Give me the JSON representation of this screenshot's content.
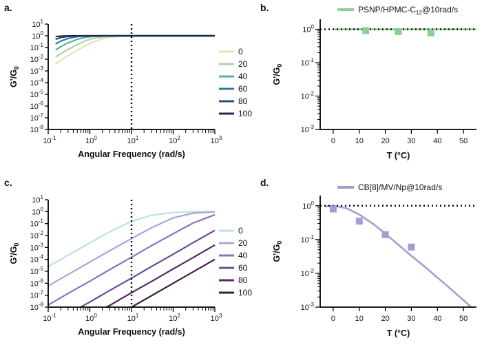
{
  "chart_data": [
    {
      "panel": "a.",
      "type": "line",
      "xlabel": "Angular Frequency (rad/s)",
      "ylabel": "G'/G0",
      "xscale": "log",
      "yscale": "log",
      "xlim": [
        0.1,
        1000
      ],
      "ylim": [
        1e-08,
        10
      ],
      "xticks": [
        0.1,
        1,
        10,
        100,
        1000
      ],
      "yticks": [
        1e-08,
        1e-07,
        1e-06,
        1e-05,
        0.0001,
        0.001,
        0.01,
        0.1,
        1,
        10
      ],
      "vline_x": 10,
      "legend_position": "right",
      "series": [
        {
          "name": "0",
          "color": "#dde8b4",
          "x": [
            0.15,
            0.2,
            0.3,
            0.5,
            0.8,
            1.2,
            2,
            3,
            5,
            10,
            30,
            100,
            1000
          ],
          "y": [
            0.004,
            0.008,
            0.02,
            0.06,
            0.15,
            0.3,
            0.55,
            0.75,
            0.9,
            0.97,
            1,
            1,
            1
          ]
        },
        {
          "name": "20",
          "color": "#a9d6a6",
          "x": [
            0.15,
            0.2,
            0.3,
            0.5,
            0.8,
            1.2,
            2,
            3,
            5,
            10,
            30,
            100,
            1000
          ],
          "y": [
            0.015,
            0.03,
            0.07,
            0.18,
            0.38,
            0.6,
            0.82,
            0.92,
            0.97,
            1,
            1,
            1,
            1
          ]
        },
        {
          "name": "40",
          "color": "#5cae9c",
          "x": [
            0.15,
            0.2,
            0.3,
            0.5,
            0.8,
            1.2,
            2,
            3,
            5,
            10,
            30,
            100,
            1000
          ],
          "y": [
            0.06,
            0.12,
            0.25,
            0.5,
            0.75,
            0.88,
            0.96,
            0.99,
            1,
            1,
            1,
            1,
            1
          ]
        },
        {
          "name": "60",
          "color": "#2f7d92",
          "x": [
            0.15,
            0.2,
            0.3,
            0.5,
            0.8,
            1.2,
            2,
            3,
            5,
            10,
            30,
            100,
            1000
          ],
          "y": [
            0.2,
            0.35,
            0.6,
            0.85,
            0.95,
            0.98,
            1,
            1,
            1,
            1,
            1,
            1,
            1
          ]
        },
        {
          "name": "80",
          "color": "#24507e",
          "x": [
            0.15,
            0.2,
            0.3,
            0.5,
            0.8,
            1.2,
            2,
            3,
            5,
            10,
            30,
            100,
            1000
          ],
          "y": [
            0.5,
            0.7,
            0.88,
            0.97,
            1,
            1,
            1,
            1,
            1,
            1,
            1,
            1,
            1
          ]
        },
        {
          "name": "100",
          "color": "#1f2a4f",
          "x": [
            0.15,
            0.2,
            0.3,
            0.5,
            0.8,
            1.2,
            2,
            3,
            5,
            10,
            30,
            100,
            1000
          ],
          "y": [
            0.85,
            0.93,
            0.98,
            1,
            1,
            1,
            1,
            1,
            1,
            1,
            1,
            1,
            1
          ]
        }
      ]
    },
    {
      "panel": "b.",
      "type": "scatter",
      "xlabel": "T (°C)",
      "ylabel": "G'/G0",
      "yscale": "log",
      "xlim": [
        -5,
        55
      ],
      "ylim": [
        0.001,
        2
      ],
      "xticks": [
        0,
        10,
        20,
        30,
        40,
        50
      ],
      "yticks": [
        0.001,
        0.01,
        0.1,
        1
      ],
      "hline_y": 1,
      "legend_position": "top",
      "series": [
        {
          "name": "PSNP/HPMC-C12@10rad/s",
          "color": "#8ccf91",
          "points": {
            "x": [
              12.5,
              25,
              37.5
            ],
            "y": [
              0.92,
              0.85,
              0.78
            ]
          },
          "fit": {
            "x": [
              0,
              55
            ],
            "y": [
              1,
              1
            ]
          }
        }
      ]
    },
    {
      "panel": "c.",
      "type": "line",
      "xlabel": "Angular Frequency (rad/s)",
      "ylabel": "G'/G0",
      "xscale": "log",
      "yscale": "log",
      "xlim": [
        0.1,
        1000
      ],
      "ylim": [
        1e-08,
        10
      ],
      "xticks": [
        0.1,
        1,
        10,
        100,
        1000
      ],
      "yticks": [
        1e-08,
        1e-07,
        1e-06,
        1e-05,
        0.0001,
        0.001,
        0.01,
        0.1,
        1,
        10
      ],
      "vline_x": 10,
      "legend_position": "right",
      "series": [
        {
          "name": "0",
          "color": "#bfe0ea",
          "x": [
            0.1,
            0.3,
            1,
            3,
            10,
            30,
            100,
            300,
            1000
          ],
          "y": [
            2.5e-05,
            0.00022,
            0.0024,
            0.021,
            0.15,
            0.5,
            0.85,
            0.98,
            1
          ]
        },
        {
          "name": "20",
          "color": "#a5a8d7",
          "x": [
            0.1,
            0.3,
            1,
            3,
            10,
            30,
            100,
            300,
            1000
          ],
          "y": [
            6e-07,
            5.4e-06,
            6e-05,
            0.00054,
            0.0055,
            0.045,
            0.3,
            0.75,
            0.97
          ]
        },
        {
          "name": "40",
          "color": "#8774b8",
          "x": [
            0.1,
            0.3,
            1,
            3,
            10,
            30,
            100,
            300,
            1000
          ],
          "y": [
            1.5e-08,
            1.4e-07,
            1.5e-06,
            1.4e-05,
            0.00015,
            0.0014,
            0.014,
            0.11,
            0.55
          ]
        },
        {
          "name": "60",
          "color": "#6a4b96",
          "x": [
            0.6,
            1,
            3,
            10,
            30,
            100,
            300,
            1000
          ],
          "y": [
            1e-08,
            2.7e-08,
            2.5e-07,
            2.7e-06,
            2.5e-05,
            0.00027,
            0.0025,
            0.027
          ]
        },
        {
          "name": "80",
          "color": "#55285f",
          "x": [
            2.5,
            3,
            10,
            30,
            100,
            300,
            1000
          ],
          "y": [
            1e-08,
            1.4e-08,
            1.6e-07,
            1.4e-06,
            1.6e-05,
            0.00014,
            0.0016
          ]
        },
        {
          "name": "100",
          "color": "#3e1f40",
          "x": [
            10,
            30,
            100,
            300,
            1000
          ],
          "y": [
            1e-08,
            9e-08,
            1e-06,
            9e-06,
            0.0001
          ]
        }
      ]
    },
    {
      "panel": "d.",
      "type": "scatter",
      "xlabel": "T (°C)",
      "ylabel": "G'/G0",
      "yscale": "log",
      "xlim": [
        -5,
        55
      ],
      "ylim": [
        0.001,
        2
      ],
      "xticks": [
        0,
        10,
        20,
        30,
        40,
        50
      ],
      "yticks": [
        0.001,
        0.01,
        0.1,
        1
      ],
      "hline_y": 1,
      "legend_position": "top",
      "series": [
        {
          "name": "CB[8]/MV/Np@10rad/s",
          "color": "#9f9fd4",
          "points": {
            "x": [
              0,
              10,
              20,
              30
            ],
            "y": [
              0.8,
              0.35,
              0.14,
              0.06
            ]
          },
          "fit": {
            "x": [
              -3,
              0,
              5,
              10,
              15,
              20,
              25,
              30,
              35,
              40,
              45,
              50,
              53
            ],
            "y": [
              0.95,
              1,
              0.85,
              0.55,
              0.3,
              0.15,
              0.07,
              0.033,
              0.016,
              0.0075,
              0.0035,
              0.0016,
              0.001
            ]
          }
        }
      ]
    }
  ]
}
